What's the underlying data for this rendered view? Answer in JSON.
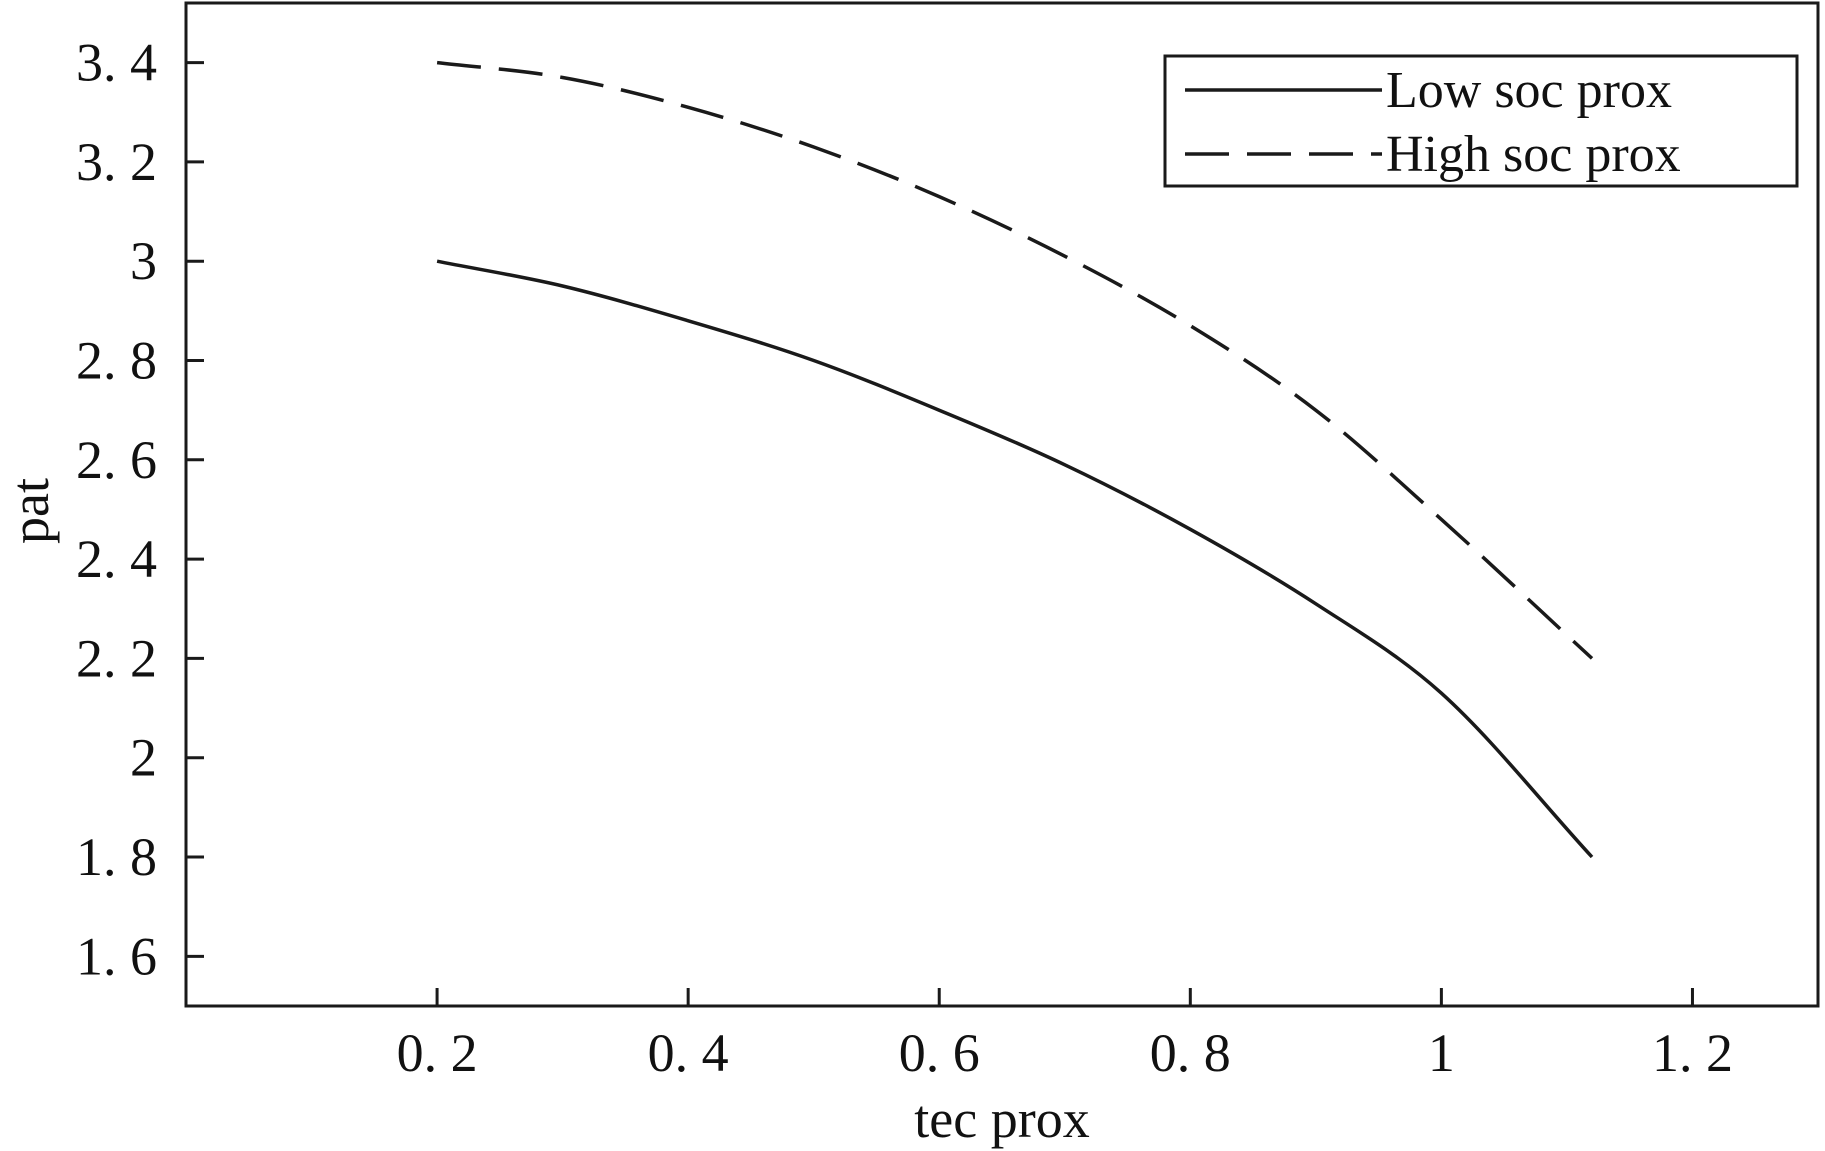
{
  "chart_data": {
    "type": "line",
    "xlabel": "tec prox",
    "ylabel": "pat",
    "xlim": [
      0.0,
      1.3
    ],
    "ylim": [
      1.5,
      3.52
    ],
    "xticks": [
      0.2,
      0.4,
      0.6,
      0.8,
      1.0,
      1.2
    ],
    "xtick_labels": [
      "0. 2",
      "0. 4",
      "0. 6",
      "0. 8",
      "1",
      "1. 2"
    ],
    "yticks": [
      1.6,
      1.8,
      2.0,
      2.2,
      2.4,
      2.6,
      2.8,
      3.0,
      3.2,
      3.4
    ],
    "ytick_labels": [
      "1. 6",
      "1. 8",
      "2",
      "2. 2",
      "2. 4",
      "2. 6",
      "2. 8",
      "3",
      "3. 2",
      "3. 4"
    ],
    "grid": false,
    "legend_position": "top-right",
    "series": [
      {
        "name": "Low soc prox",
        "style": "solid",
        "color": "#1a1a1a",
        "x": [
          0.2,
          0.3,
          0.4,
          0.5,
          0.6,
          0.7,
          0.8,
          0.9,
          1.0,
          1.12
        ],
        "y": [
          3.0,
          2.95,
          2.88,
          2.8,
          2.7,
          2.59,
          2.46,
          2.31,
          2.13,
          1.8
        ]
      },
      {
        "name": "High soc prox",
        "style": "dashed",
        "color": "#1a1a1a",
        "x": [
          0.2,
          0.3,
          0.4,
          0.5,
          0.6,
          0.7,
          0.8,
          0.9,
          1.0,
          1.12
        ],
        "y": [
          3.4,
          3.37,
          3.31,
          3.23,
          3.13,
          3.01,
          2.87,
          2.7,
          2.48,
          2.2
        ]
      }
    ]
  }
}
